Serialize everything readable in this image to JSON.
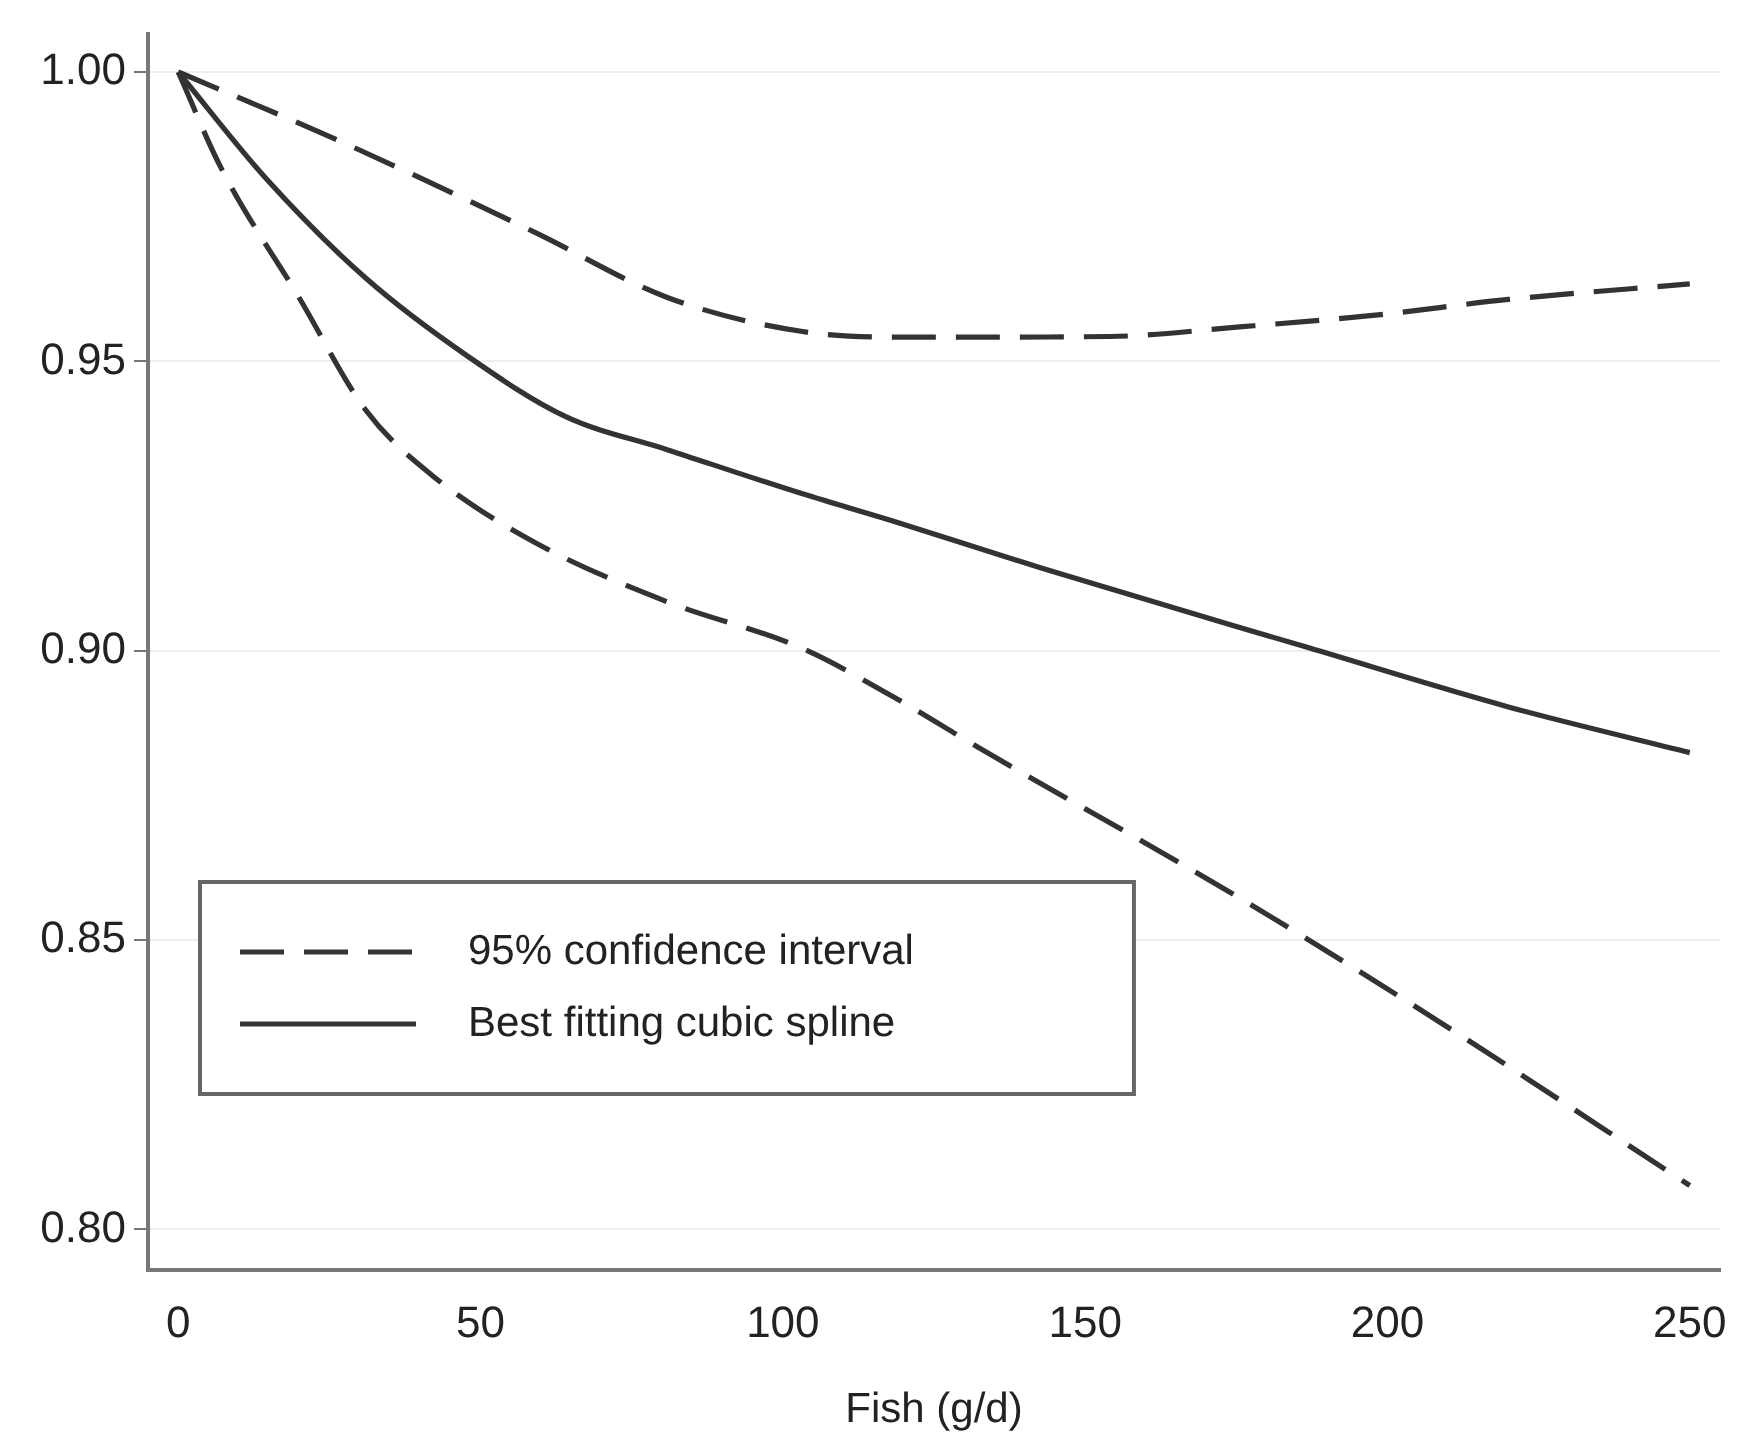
{
  "chart_data": {
    "type": "line",
    "xlabel": "Fish (g/d)",
    "xlim": [
      -5,
      255
    ],
    "xticks": [
      0,
      50,
      100,
      150,
      200,
      250
    ],
    "ylim": [
      0.793,
      1.0065
    ],
    "yticks": [
      {
        "value": 0.8,
        "label": "0.80"
      },
      {
        "value": 0.85,
        "label": "0.85"
      },
      {
        "value": 0.9,
        "label": "0.90"
      },
      {
        "value": 0.95,
        "label": "0.95"
      },
      {
        "value": 1.0,
        "label": "1.00"
      }
    ],
    "grid": "y",
    "legend": "bottom left",
    "marker": "none",
    "series": [
      {
        "name": "95% confidence interval",
        "color": "#333333",
        "line_style": "dashed",
        "x": [
          0,
          26,
          59,
          81,
          103,
          119.5,
          132,
          154,
          176,
          198,
          220,
          250
        ],
        "values": [
          1.0,
          0.9884,
          0.9723,
          0.961,
          0.9552,
          0.9542,
          0.9542,
          0.9543,
          0.956,
          0.958,
          0.9607,
          0.9634
        ]
      },
      {
        "name": "Best fitting cubic spline",
        "color": "#333333",
        "line_style": "solid",
        "x": [
          0,
          14.6,
          31,
          48,
          64,
          81,
          103,
          119.5,
          143,
          187,
          220,
          250
        ],
        "values": [
          1.0,
          0.9815,
          0.9644,
          0.9508,
          0.9405,
          0.9347,
          0.9272,
          0.922,
          0.9142,
          0.9005,
          0.8903,
          0.8824
        ]
      },
      {
        "color": "#333333",
        "line_style": "dashed",
        "x": [
          0,
          7,
          20,
          31,
          42,
          59,
          81,
          103,
          119.5,
          132,
          176,
          209,
          250
        ],
        "values": [
          1.0,
          0.9836,
          0.961,
          0.9416,
          0.9303,
          0.9187,
          0.9084,
          0.9005,
          0.8913,
          0.8835,
          0.857,
          0.8356,
          0.8076
        ]
      }
    ]
  }
}
